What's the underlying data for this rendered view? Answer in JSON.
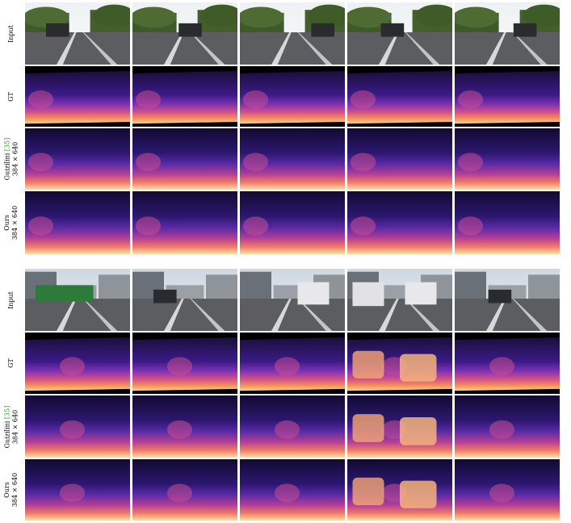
{
  "figure": {
    "row_labels": {
      "input": "Input",
      "gt": "GT",
      "guizilini_name": "Guizilini",
      "guizilini_cite": "[35]",
      "guizilini_res": "384 × 640",
      "ours_name": "Ours",
      "ours_res": "384 × 640"
    }
  }
}
